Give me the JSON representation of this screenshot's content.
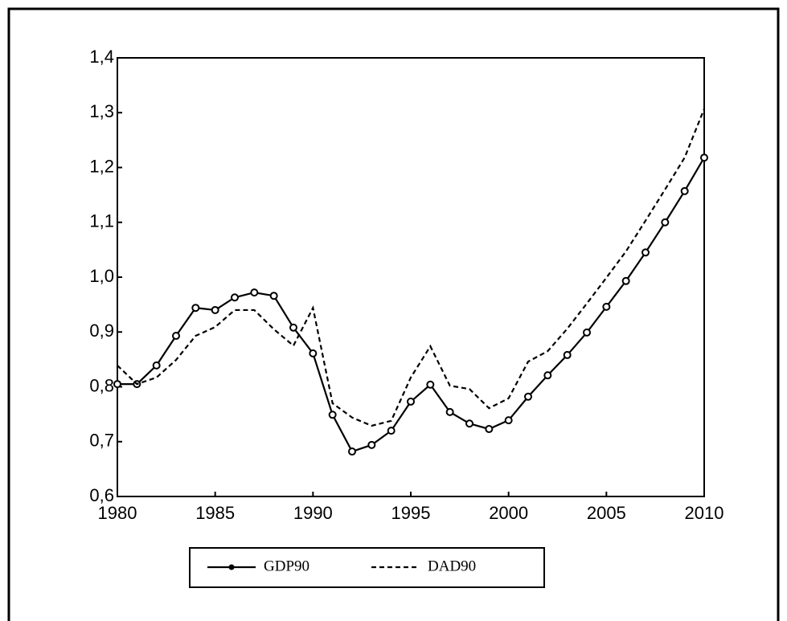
{
  "chart_data": {
    "type": "line",
    "x": [
      1980,
      1981,
      1982,
      1983,
      1984,
      1985,
      1986,
      1987,
      1988,
      1989,
      1990,
      1991,
      1992,
      1993,
      1994,
      1995,
      1996,
      1997,
      1998,
      1999,
      2000,
      2001,
      2002,
      2003,
      2004,
      2005,
      2006,
      2007,
      2008,
      2009,
      2010
    ],
    "series": [
      {
        "name": "GDP90",
        "color": "#000000",
        "style": "solid",
        "marker": "circle",
        "values": [
          0.805,
          0.805,
          0.839,
          0.893,
          0.944,
          0.94,
          0.963,
          0.972,
          0.966,
          0.908,
          0.861,
          0.749,
          0.682,
          0.694,
          0.72,
          0.773,
          0.804,
          0.754,
          0.733,
          0.723,
          0.739,
          0.782,
          0.821,
          0.858,
          0.899,
          0.946,
          0.993,
          1.045,
          1.1,
          1.157,
          1.218
        ]
      },
      {
        "name": "DAD90",
        "color": "#000000",
        "style": "dashed",
        "values": [
          0.839,
          0.805,
          0.817,
          0.849,
          0.893,
          0.909,
          0.94,
          0.94,
          0.905,
          0.875,
          0.944,
          0.77,
          0.744,
          0.729,
          0.738,
          0.817,
          0.874,
          0.802,
          0.796,
          0.761,
          0.779,
          0.846,
          0.865,
          0.906,
          0.952,
          0.999,
          1.047,
          1.103,
          1.16,
          1.218,
          1.307
        ]
      }
    ],
    "xlim": [
      1980,
      2010
    ],
    "xticks": [
      1980,
      1985,
      1990,
      1995,
      2000,
      2005,
      2010
    ],
    "ylim": [
      0.6,
      1.4
    ],
    "yticks": [
      {
        "value": 0.6,
        "label": "0,6"
      },
      {
        "value": 0.7,
        "label": "0,7"
      },
      {
        "value": 0.8,
        "label": "0,8"
      },
      {
        "value": 0.9,
        "label": "0,9"
      },
      {
        "value": 1.0,
        "label": "1,0"
      },
      {
        "value": 1.1,
        "label": "1,1"
      },
      {
        "value": 1.2,
        "label": "1,2"
      },
      {
        "value": 1.3,
        "label": "1,3"
      },
      {
        "value": 1.4,
        "label": "1,4"
      }
    ],
    "grid": false,
    "legend": "bottom"
  }
}
